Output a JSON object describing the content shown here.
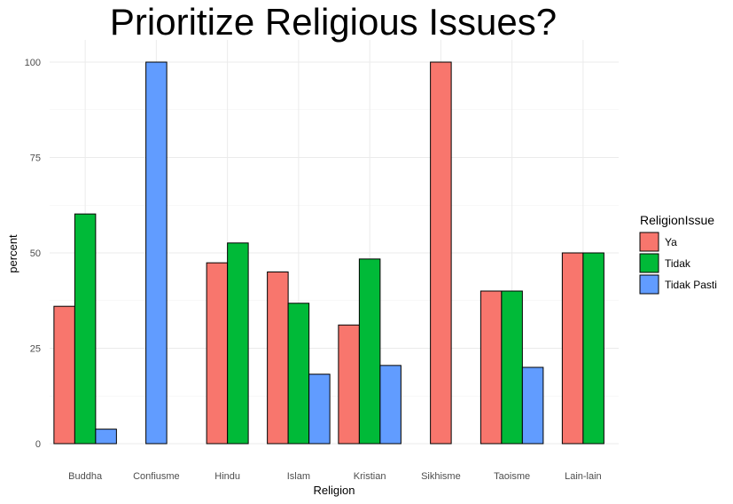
{
  "chart_data": {
    "type": "bar",
    "title": "Prioritize Religious Issues?",
    "xlabel": "Religion",
    "ylabel": "percent",
    "ylim": [
      0,
      100
    ],
    "yticks": [
      0,
      25,
      50,
      75,
      100
    ],
    "grid": true,
    "legend": {
      "title": "ReligionIssue",
      "placement": "right"
    },
    "categories": [
      "Buddha",
      "Confiusme",
      "Hindu",
      "Islam",
      "Kristian",
      "Sikhisme",
      "Taoisme",
      "Lain-lain"
    ],
    "series": [
      {
        "name": "Ya",
        "color": "#F8766D",
        "values": [
          36,
          null,
          47.4,
          45,
          31.1,
          100,
          40,
          50
        ]
      },
      {
        "name": "Tidak",
        "color": "#00BA38",
        "values": [
          60.2,
          null,
          52.6,
          36.8,
          48.4,
          null,
          40,
          50
        ]
      },
      {
        "name": "Tidak Pasti",
        "color": "#619CFF",
        "values": [
          3.8,
          100,
          null,
          18.2,
          20.5,
          null,
          20,
          null
        ]
      }
    ]
  }
}
